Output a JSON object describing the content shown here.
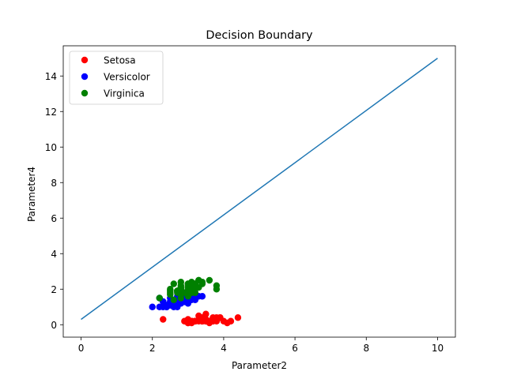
{
  "chart_data": {
    "type": "scatter",
    "title": "Decision Boundary",
    "xlabel": "Parameter2",
    "ylabel": "Parameter4",
    "xlim": [
      -0.5,
      10.5
    ],
    "ylim": [
      -0.7,
      15.7
    ],
    "xticks": [
      0,
      2,
      4,
      6,
      8,
      10
    ],
    "yticks": [
      0,
      2,
      4,
      6,
      8,
      10,
      12,
      14
    ],
    "grid": false,
    "legend_position": "top-left",
    "series": [
      {
        "name": "Setosa",
        "color": "#ff0000",
        "points": [
          [
            3.5,
            0.2
          ],
          [
            3.0,
            0.2
          ],
          [
            3.2,
            0.2
          ],
          [
            3.1,
            0.2
          ],
          [
            3.6,
            0.2
          ],
          [
            3.9,
            0.4
          ],
          [
            3.4,
            0.3
          ],
          [
            3.4,
            0.2
          ],
          [
            2.9,
            0.2
          ],
          [
            3.1,
            0.1
          ],
          [
            3.7,
            0.2
          ],
          [
            3.4,
            0.2
          ],
          [
            3.0,
            0.1
          ],
          [
            3.0,
            0.1
          ],
          [
            4.0,
            0.2
          ],
          [
            4.4,
            0.4
          ],
          [
            3.9,
            0.4
          ],
          [
            3.5,
            0.3
          ],
          [
            3.8,
            0.3
          ],
          [
            3.8,
            0.3
          ],
          [
            3.4,
            0.2
          ],
          [
            3.7,
            0.4
          ],
          [
            3.6,
            0.2
          ],
          [
            3.3,
            0.5
          ],
          [
            3.4,
            0.2
          ],
          [
            3.0,
            0.2
          ],
          [
            3.4,
            0.4
          ],
          [
            3.5,
            0.2
          ],
          [
            3.4,
            0.2
          ],
          [
            3.2,
            0.2
          ],
          [
            3.1,
            0.2
          ],
          [
            3.4,
            0.4
          ],
          [
            4.1,
            0.1
          ],
          [
            4.2,
            0.2
          ],
          [
            3.1,
            0.2
          ],
          [
            3.2,
            0.2
          ],
          [
            3.5,
            0.2
          ],
          [
            3.6,
            0.1
          ],
          [
            3.0,
            0.2
          ],
          [
            3.4,
            0.2
          ],
          [
            3.5,
            0.3
          ],
          [
            2.3,
            0.3
          ],
          [
            3.2,
            0.2
          ],
          [
            3.5,
            0.6
          ],
          [
            3.8,
            0.4
          ],
          [
            3.0,
            0.3
          ],
          [
            3.8,
            0.2
          ],
          [
            3.2,
            0.2
          ],
          [
            3.7,
            0.2
          ],
          [
            3.3,
            0.2
          ]
        ]
      },
      {
        "name": "Versicolor",
        "color": "#0000ff",
        "points": [
          [
            3.2,
            1.4
          ],
          [
            3.2,
            1.5
          ],
          [
            3.1,
            1.5
          ],
          [
            2.3,
            1.3
          ],
          [
            2.8,
            1.5
          ],
          [
            2.8,
            1.3
          ],
          [
            3.3,
            1.6
          ],
          [
            2.4,
            1.0
          ],
          [
            2.9,
            1.3
          ],
          [
            2.7,
            1.4
          ],
          [
            2.0,
            1.0
          ],
          [
            3.0,
            1.5
          ],
          [
            2.2,
            1.0
          ],
          [
            2.9,
            1.4
          ],
          [
            2.9,
            1.3
          ],
          [
            3.1,
            1.4
          ],
          [
            3.0,
            1.5
          ],
          [
            2.7,
            1.0
          ],
          [
            2.2,
            1.5
          ],
          [
            2.5,
            1.1
          ],
          [
            3.2,
            1.8
          ],
          [
            2.8,
            1.3
          ],
          [
            2.5,
            1.5
          ],
          [
            2.8,
            1.2
          ],
          [
            2.9,
            1.3
          ],
          [
            3.0,
            1.4
          ],
          [
            2.8,
            1.4
          ],
          [
            3.0,
            1.7
          ],
          [
            2.9,
            1.5
          ],
          [
            2.6,
            1.0
          ],
          [
            2.4,
            1.1
          ],
          [
            2.4,
            1.0
          ],
          [
            2.7,
            1.2
          ],
          [
            2.7,
            1.6
          ],
          [
            3.0,
            1.5
          ],
          [
            3.4,
            1.6
          ],
          [
            3.1,
            1.5
          ],
          [
            2.3,
            1.3
          ],
          [
            3.0,
            1.3
          ],
          [
            2.5,
            1.3
          ],
          [
            2.6,
            1.2
          ],
          [
            3.0,
            1.4
          ],
          [
            2.6,
            1.2
          ],
          [
            2.3,
            1.0
          ],
          [
            2.7,
            1.3
          ],
          [
            3.0,
            1.2
          ],
          [
            2.9,
            1.3
          ],
          [
            2.9,
            1.3
          ],
          [
            2.5,
            1.1
          ],
          [
            2.8,
            1.3
          ]
        ]
      },
      {
        "name": "Virginica",
        "color": "#008000",
        "points": [
          [
            3.3,
            2.5
          ],
          [
            2.7,
            1.9
          ],
          [
            3.0,
            2.1
          ],
          [
            2.9,
            1.8
          ],
          [
            3.0,
            2.2
          ],
          [
            3.0,
            2.1
          ],
          [
            2.5,
            1.7
          ],
          [
            2.9,
            1.8
          ],
          [
            2.5,
            1.8
          ],
          [
            3.6,
            2.5
          ],
          [
            3.2,
            2.0
          ],
          [
            2.7,
            1.9
          ],
          [
            3.0,
            2.1
          ],
          [
            2.5,
            2.0
          ],
          [
            2.8,
            2.4
          ],
          [
            3.2,
            2.3
          ],
          [
            3.0,
            1.8
          ],
          [
            3.8,
            2.2
          ],
          [
            2.6,
            2.3
          ],
          [
            2.2,
            1.5
          ],
          [
            3.2,
            2.3
          ],
          [
            2.8,
            2.0
          ],
          [
            2.8,
            2.0
          ],
          [
            2.7,
            1.8
          ],
          [
            3.3,
            2.1
          ],
          [
            3.2,
            1.8
          ],
          [
            2.8,
            1.8
          ],
          [
            3.0,
            1.8
          ],
          [
            2.8,
            2.1
          ],
          [
            3.0,
            1.6
          ],
          [
            2.8,
            1.9
          ],
          [
            3.8,
            2.0
          ],
          [
            2.8,
            2.2
          ],
          [
            2.8,
            1.5
          ],
          [
            2.6,
            1.4
          ],
          [
            3.0,
            2.3
          ],
          [
            3.4,
            2.4
          ],
          [
            3.1,
            1.8
          ],
          [
            3.0,
            1.8
          ],
          [
            3.1,
            2.1
          ],
          [
            3.1,
            2.4
          ],
          [
            3.1,
            2.3
          ],
          [
            2.7,
            1.9
          ],
          [
            3.2,
            2.3
          ],
          [
            3.3,
            2.5
          ],
          [
            3.0,
            2.3
          ],
          [
            2.5,
            1.9
          ],
          [
            3.0,
            2.0
          ],
          [
            3.4,
            2.3
          ],
          [
            3.0,
            1.8
          ]
        ]
      }
    ],
    "line": {
      "color": "#1f77b4",
      "points": [
        [
          0,
          0.3
        ],
        [
          10,
          15.0
        ]
      ]
    }
  }
}
